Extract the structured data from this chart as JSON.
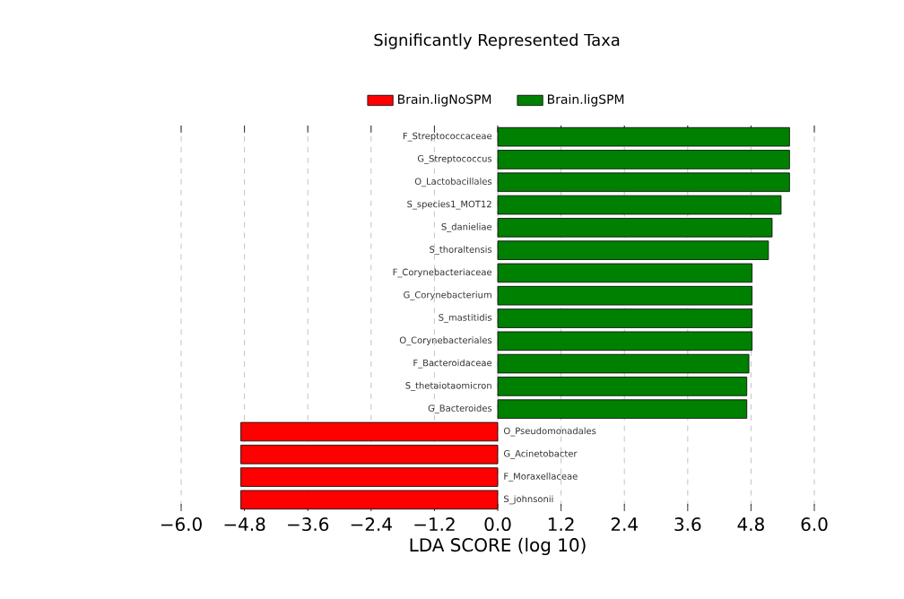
{
  "chart_data": {
    "type": "bar",
    "orientation": "horizontal",
    "title": "Significantly Represented Taxa",
    "xlabel": "LDA SCORE (log 10)",
    "categories": [
      "F_Streptococcaceae",
      "G_Streptococcus",
      "O_Lactobacillales",
      "S_species1_MOT12",
      "S_danieliae",
      "S_thoraltensis",
      "F_Corynebacteriaceae",
      "G_Corynebacterium",
      "S_mastitidis",
      "O_Corynebacteriales",
      "F_Bacteroidaceae",
      "S_thetaiotaomicron",
      "G_Bacteroides",
      "O_Pseudomonadales",
      "G_Acinetobacter",
      "F_Moraxellaceae",
      "S_johnsonii"
    ],
    "series": [
      {
        "name": "Brain.ligNoSPM",
        "color": "#ff0000",
        "values": [
          null,
          null,
          null,
          null,
          null,
          null,
          null,
          null,
          null,
          null,
          null,
          null,
          null,
          -4.87,
          -4.87,
          -4.87,
          -4.87
        ]
      },
      {
        "name": "Brain.ligSPM",
        "color": "#008000",
        "values": [
          5.53,
          5.53,
          5.53,
          5.37,
          5.2,
          5.13,
          4.82,
          4.82,
          4.82,
          4.82,
          4.76,
          4.72,
          4.72,
          null,
          null,
          null,
          null
        ]
      }
    ],
    "xlim": [
      -6.0,
      6.0
    ],
    "xticks": [
      {
        "value": -6.0,
        "label": "−6.0"
      },
      {
        "value": -4.8,
        "label": "−4.8"
      },
      {
        "value": -3.6,
        "label": "−3.6"
      },
      {
        "value": -2.4,
        "label": "−2.4"
      },
      {
        "value": -1.2,
        "label": "−1.2"
      },
      {
        "value": 0.0,
        "label": "0.0"
      },
      {
        "value": 1.2,
        "label": "1.2"
      },
      {
        "value": 2.4,
        "label": "2.4"
      },
      {
        "value": 3.6,
        "label": "3.6"
      },
      {
        "value": 4.8,
        "label": "4.8"
      },
      {
        "value": 6.0,
        "label": "6.0"
      }
    ],
    "grid": "x",
    "legend": "top"
  }
}
